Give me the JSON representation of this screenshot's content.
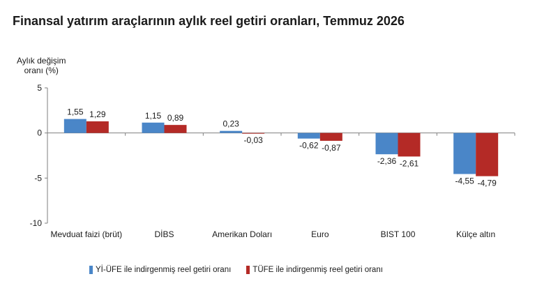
{
  "header": {
    "title": "Finansal yatırım araçlarının aylık reel getiri oranları, Temmuz 2026"
  },
  "chart_data": {
    "type": "bar",
    "title": "Finansal yatırım araçlarının aylık reel getiri oranları, Temmuz 2026",
    "ylabel": [
      "Aylık değişim",
      "oranı (%)"
    ],
    "xlabel": "",
    "ylim": [
      -10,
      5
    ],
    "yticks": [
      5,
      0,
      -5,
      -10
    ],
    "ytick_labels": [
      "5",
      "0",
      "-5",
      "-10"
    ],
    "grid": false,
    "legend_position": "bottom",
    "categories": [
      "Mevduat faizi (brüt)",
      "DİBS",
      "Amerikan Doları",
      "Euro",
      "BIST 100",
      "Külçe altın"
    ],
    "series": [
      {
        "name": "Yİ-ÜFE ile indirgenmiş reel getiri oranı",
        "color": "#4a86c8",
        "values": [
          1.55,
          1.15,
          0.23,
          -0.62,
          -2.36,
          -4.55
        ],
        "labels": [
          "1,55",
          "1,15",
          "0,23",
          "-0,62",
          "-2,36",
          "-4,55"
        ]
      },
      {
        "name": "TÜFE ile indirgenmiş reel getiri oranı",
        "color": "#b42a26",
        "values": [
          1.29,
          0.89,
          -0.03,
          -0.87,
          -2.61,
          -4.79
        ],
        "labels": [
          "1,29",
          "0,89",
          "-0,03",
          "-0,87",
          "-2,61",
          "-4,79"
        ]
      }
    ]
  }
}
